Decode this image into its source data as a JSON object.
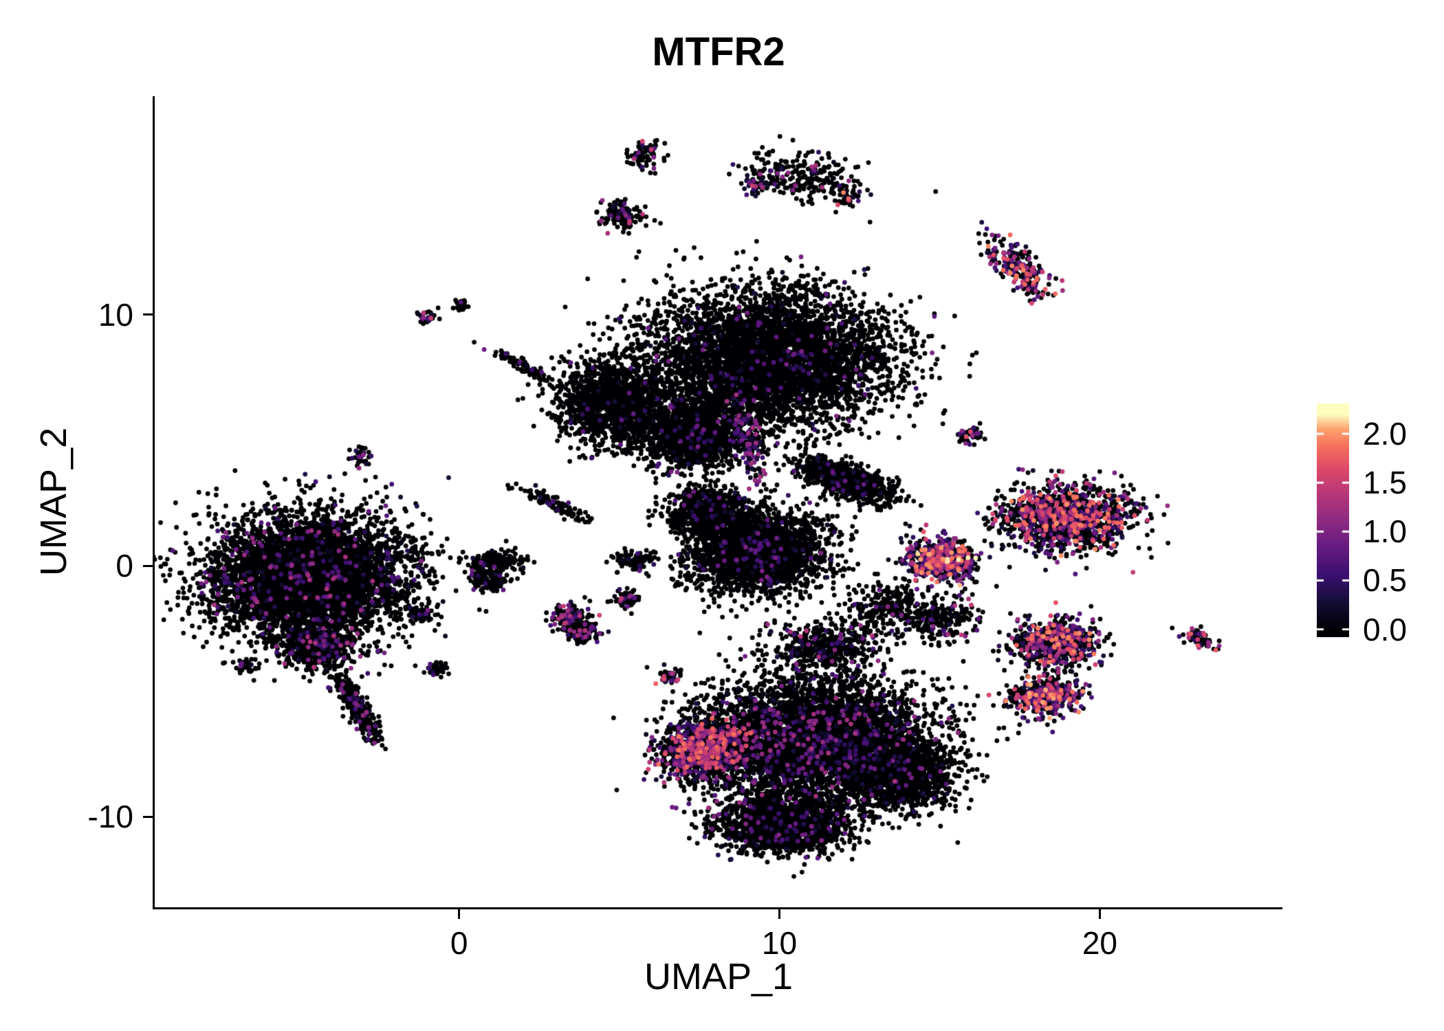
{
  "chart_data": {
    "type": "scatter",
    "title": "MTFR2",
    "xlabel": "UMAP_1",
    "ylabel": "UMAP_2",
    "xlim": [
      -9.5,
      25.7
    ],
    "ylim": [
      -13.6,
      18.7
    ],
    "x_ticks": [
      {
        "value": 0,
        "label": "0"
      },
      {
        "value": 10,
        "label": "10"
      },
      {
        "value": 20,
        "label": "20"
      }
    ],
    "y_ticks": [
      {
        "value": 10,
        "label": "10"
      },
      {
        "value": 0,
        "label": "0"
      },
      {
        "value": -10,
        "label": "-10"
      }
    ],
    "colorbar_ticks": [
      {
        "value": 2.0,
        "label": "2.0"
      },
      {
        "value": 1.5,
        "label": "1.5"
      },
      {
        "value": 1.0,
        "label": "1.0"
      },
      {
        "value": 0.5,
        "label": "0.5"
      },
      {
        "value": 0.0,
        "label": "0.0"
      }
    ],
    "color_scale": {
      "name": "magma",
      "domain": [
        0,
        2.2
      ],
      "legend_position": "right",
      "stops": [
        [
          0.0,
          "#000004"
        ],
        [
          0.13,
          "#140e36"
        ],
        [
          0.25,
          "#3b0f70"
        ],
        [
          0.38,
          "#641a80"
        ],
        [
          0.5,
          "#8c2981"
        ],
        [
          0.63,
          "#b73779"
        ],
        [
          0.75,
          "#de4968"
        ],
        [
          0.85,
          "#f7705c"
        ],
        [
          0.93,
          "#fe9f6d"
        ],
        [
          1.0,
          "#fcfdbf"
        ]
      ]
    },
    "point_style": {
      "radius_px": 3.4
    },
    "point_color_zero": "#000004",
    "background": "#FFFFFF",
    "axis_color": "#000000",
    "clusters": [
      {
        "x": 5.8,
        "y": 16.4,
        "sx": 0.3,
        "sy": 0.35,
        "rot": 0,
        "n": 70,
        "f": 0.3,
        "m": 1.6
      },
      {
        "x": 10.6,
        "y": 15.5,
        "sx": 1.0,
        "sy": 0.5,
        "rot": -15,
        "n": 260,
        "f": 0.12,
        "m": 1.4
      },
      {
        "x": 9.3,
        "y": 15.1,
        "sx": 0.18,
        "sy": 0.22,
        "rot": 0,
        "n": 40,
        "f": 0.7,
        "m": 1.8
      },
      {
        "x": 12.1,
        "y": 14.6,
        "sx": 0.22,
        "sy": 0.16,
        "rot": 0,
        "n": 30,
        "f": 0.4,
        "m": 2.0
      },
      {
        "x": 5.1,
        "y": 13.9,
        "sx": 0.35,
        "sy": 0.3,
        "rot": 0,
        "n": 130,
        "f": 0.25,
        "m": 1.5
      },
      {
        "x": 17.5,
        "y": 11.8,
        "sx": 0.8,
        "sy": 0.3,
        "rot": -50,
        "n": 230,
        "f": 0.55,
        "m": 2.0
      },
      {
        "x": -1.0,
        "y": 9.9,
        "sx": 0.18,
        "sy": 0.15,
        "rot": 0,
        "n": 30,
        "f": 0.4,
        "m": 1.5
      },
      {
        "x": 0.1,
        "y": 10.4,
        "sx": 0.15,
        "sy": 0.12,
        "rot": 0,
        "n": 25,
        "f": 0.1,
        "m": 0.8
      },
      {
        "x": 1.9,
        "y": 8.0,
        "sx": 0.55,
        "sy": 0.12,
        "rot": -35,
        "n": 80,
        "f": 0.08,
        "m": 0.9
      },
      {
        "x": 9.6,
        "y": 8.2,
        "sx": 1.9,
        "sy": 1.35,
        "rot": 0,
        "n": 5200,
        "f": 0.035,
        "m": 1.0
      },
      {
        "x": 4.8,
        "y": 6.5,
        "sx": 0.85,
        "sy": 0.85,
        "rot": 0,
        "n": 1400,
        "f": 0.03,
        "m": 0.9
      },
      {
        "x": 7.3,
        "y": 5.2,
        "sx": 0.9,
        "sy": 0.7,
        "rot": 0,
        "n": 1200,
        "f": 0.05,
        "m": 1.0
      },
      {
        "x": 9.0,
        "y": 5.0,
        "sx": 0.25,
        "sy": 0.95,
        "rot": 10,
        "n": 160,
        "f": 0.7,
        "m": 1.3
      },
      {
        "x": -3.1,
        "y": 4.3,
        "sx": 0.18,
        "sy": 0.22,
        "rot": 0,
        "n": 35,
        "f": 0.2,
        "m": 1.2
      },
      {
        "x": -4.7,
        "y": -0.4,
        "sx": 1.55,
        "sy": 1.25,
        "rot": 0,
        "n": 5200,
        "f": 0.07,
        "m": 1.3
      },
      {
        "x": -3.2,
        "y": -5.6,
        "sx": 0.75,
        "sy": 0.18,
        "rot": -65,
        "n": 350,
        "f": 0.1,
        "m": 1.2
      },
      {
        "x": -4.4,
        "y": -3.2,
        "sx": 0.5,
        "sy": 0.4,
        "rot": 0,
        "n": 600,
        "f": 0.12,
        "m": 1.4
      },
      {
        "x": 0.9,
        "y": -0.5,
        "sx": 0.3,
        "sy": 0.25,
        "rot": 0,
        "n": 110,
        "f": 0.08,
        "m": 1.0
      },
      {
        "x": 3.5,
        "y": -2.1,
        "sx": 0.35,
        "sy": 0.3,
        "rot": 0,
        "n": 150,
        "f": 0.25,
        "m": 1.6
      },
      {
        "x": 5.2,
        "y": -1.3,
        "sx": 0.25,
        "sy": 0.2,
        "rot": 0,
        "n": 70,
        "f": 0.3,
        "m": 1.7
      },
      {
        "x": 9.3,
        "y": 0.6,
        "sx": 1.05,
        "sy": 0.8,
        "rot": 0,
        "n": 2600,
        "f": 0.04,
        "m": 1.0
      },
      {
        "x": 7.7,
        "y": 2.2,
        "sx": 0.6,
        "sy": 0.45,
        "rot": 0,
        "n": 700,
        "f": 0.06,
        "m": 1.0
      },
      {
        "x": 12.1,
        "y": 3.4,
        "sx": 0.85,
        "sy": 0.3,
        "rot": -25,
        "n": 900,
        "f": 0.04,
        "m": 0.9
      },
      {
        "x": 16.0,
        "y": 5.2,
        "sx": 0.25,
        "sy": 0.18,
        "rot": 0,
        "n": 45,
        "f": 0.5,
        "m": 1.8
      },
      {
        "x": 15.1,
        "y": 0.2,
        "sx": 0.55,
        "sy": 0.4,
        "rot": 0,
        "n": 550,
        "f": 0.65,
        "m": 2.2
      },
      {
        "x": 18.9,
        "y": 1.9,
        "sx": 1.0,
        "sy": 0.65,
        "rot": 0,
        "n": 1300,
        "f": 0.45,
        "m": 2.0
      },
      {
        "x": 18.6,
        "y": -3.1,
        "sx": 0.65,
        "sy": 0.45,
        "rot": 0,
        "n": 650,
        "f": 0.45,
        "m": 2.0
      },
      {
        "x": 18.3,
        "y": -5.2,
        "sx": 0.55,
        "sy": 0.4,
        "rot": 0,
        "n": 500,
        "f": 0.5,
        "m": 2.1
      },
      {
        "x": 23.1,
        "y": -2.9,
        "sx": 0.35,
        "sy": 0.15,
        "rot": -30,
        "n": 60,
        "f": 0.55,
        "m": 1.9
      },
      {
        "x": 11.1,
        "y": -6.9,
        "sx": 1.75,
        "sy": 1.2,
        "rot": 0,
        "n": 5200,
        "f": 0.1,
        "m": 1.3
      },
      {
        "x": 7.7,
        "y": -7.3,
        "sx": 0.75,
        "sy": 0.55,
        "rot": 20,
        "n": 1100,
        "f": 0.5,
        "m": 1.9
      },
      {
        "x": 10.1,
        "y": -10.3,
        "sx": 1.0,
        "sy": 0.55,
        "rot": 0,
        "n": 1800,
        "f": 0.06,
        "m": 1.1
      },
      {
        "x": 13.7,
        "y": -8.4,
        "sx": 0.8,
        "sy": 0.6,
        "rot": 0,
        "n": 1400,
        "f": 0.05,
        "m": 1.0
      },
      {
        "x": 11.4,
        "y": -3.2,
        "sx": 0.9,
        "sy": 0.5,
        "rot": 0,
        "n": 450,
        "f": 0.15,
        "m": 1.4
      },
      {
        "x": 6.6,
        "y": -4.4,
        "sx": 0.2,
        "sy": 0.15,
        "rot": 0,
        "n": 45,
        "f": 0.45,
        "m": 1.8
      },
      {
        "x": 3.9,
        "y": -2.7,
        "sx": 0.25,
        "sy": 0.2,
        "rot": 0,
        "n": 90,
        "f": 0.3,
        "m": 1.6
      },
      {
        "x": -0.7,
        "y": -4.1,
        "sx": 0.2,
        "sy": 0.15,
        "rot": 0,
        "n": 40,
        "f": 0.15,
        "m": 1.2
      },
      {
        "x": -6.6,
        "y": -4.0,
        "sx": 0.2,
        "sy": 0.12,
        "rot": 0,
        "n": 30,
        "f": 0.15,
        "m": 1.0
      },
      {
        "x": 2.9,
        "y": 2.5,
        "sx": 0.6,
        "sy": 0.12,
        "rot": -30,
        "n": 110,
        "f": 0.06,
        "m": 0.8
      },
      {
        "x": 1.2,
        "y": 0.2,
        "sx": 0.45,
        "sy": 0.2,
        "rot": 0,
        "n": 160,
        "f": 0.05,
        "m": 0.9
      },
      {
        "x": 5.5,
        "y": 0.2,
        "sx": 0.3,
        "sy": 0.2,
        "rot": 0,
        "n": 90,
        "f": 0.08,
        "m": 1.0
      },
      {
        "x": 13.4,
        "y": -1.7,
        "sx": 0.7,
        "sy": 0.5,
        "rot": 0,
        "n": 250,
        "f": 0.1,
        "m": 1.2
      },
      {
        "x": 15.2,
        "y": -2.1,
        "sx": 0.5,
        "sy": 0.45,
        "rot": 0,
        "n": 200,
        "f": 0.2,
        "m": 1.5
      },
      {
        "x": -1.2,
        "y": -1.9,
        "sx": 0.2,
        "sy": 0.15,
        "rot": 0,
        "n": 70,
        "f": 0.1,
        "m": 1.0
      }
    ]
  }
}
